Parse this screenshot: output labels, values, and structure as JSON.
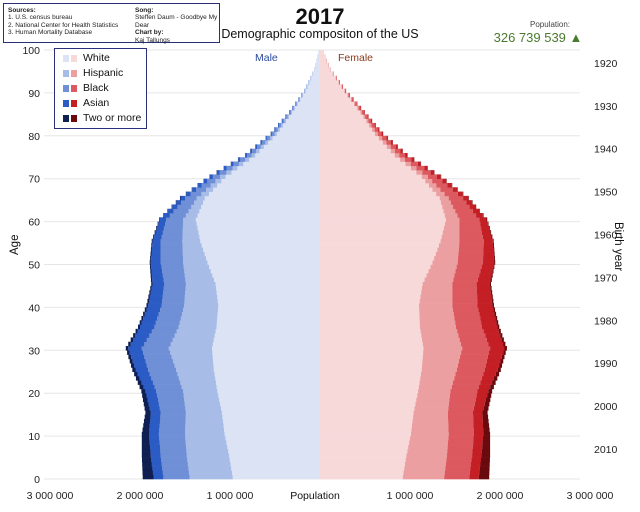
{
  "header": {
    "title": "2017",
    "subtitle": "Demographic compositon of the US",
    "population_label": "Population:",
    "population_value": "326 739 539 ▲",
    "population_color": "#4a7a2f"
  },
  "sources": {
    "heading": "Sources:",
    "items": [
      "1. U.S. census bureau",
      "2. National Center for Health Statistics",
      "3. Human Mortality Database"
    ],
    "song_heading": "Song:",
    "song": "Steffen Daum - Goodbye My Dear",
    "chartby_heading": "Chart by:",
    "chartby": "Kaj Tallungs"
  },
  "chart_data": {
    "type": "bar",
    "orientation": "horizontal-population-pyramid",
    "stacked": true,
    "title": "2017",
    "subtitle": "Demographic compositon of the US",
    "xlabel": "Population",
    "ylabel": "Age",
    "y2label": "Birth year",
    "side_labels": {
      "male": "Male",
      "female": "Female"
    },
    "xlim": [
      -3000000,
      3000000
    ],
    "ylim": [
      0,
      100
    ],
    "x_ticks": [
      {
        "value": -3000000,
        "label": "3 000 000"
      },
      {
        "value": -2000000,
        "label": "2 000 000"
      },
      {
        "value": -1000000,
        "label": "1 000 000"
      },
      {
        "value": 1000000,
        "label": "1 000 000"
      },
      {
        "value": 2000000,
        "label": "2 000 000"
      },
      {
        "value": 3000000,
        "label": "3 000 000"
      }
    ],
    "y_ticks": [
      0,
      10,
      20,
      30,
      40,
      50,
      60,
      70,
      80,
      90,
      100
    ],
    "birth_year_ticks": [
      {
        "age": 7,
        "label": "2010"
      },
      {
        "age": 17,
        "label": "2000"
      },
      {
        "age": 27,
        "label": "1990"
      },
      {
        "age": 37,
        "label": "1980"
      },
      {
        "age": 47,
        "label": "1970"
      },
      {
        "age": 57,
        "label": "1960"
      },
      {
        "age": 67,
        "label": "1950"
      },
      {
        "age": 77,
        "label": "1940"
      },
      {
        "age": 87,
        "label": "1930"
      },
      {
        "age": 97,
        "label": "1920"
      }
    ],
    "grid": "horizontal-every-10",
    "legend_position": "top-left",
    "categories": [
      "0",
      "5",
      "10",
      "15",
      "20",
      "25",
      "30",
      "35",
      "40",
      "45",
      "50",
      "55",
      "60",
      "65",
      "70",
      "75",
      "80",
      "85",
      "90",
      "95",
      "100"
    ],
    "series": [
      {
        "name": "White",
        "colors": {
          "male": "#dce3f4",
          "female": "#f7d9da"
        },
        "male": [
          970000,
          1010000,
          1060000,
          1090000,
          1140000,
          1180000,
          1200000,
          1150000,
          1130000,
          1160000,
          1250000,
          1330000,
          1380000,
          1280000,
          1050000,
          720000,
          480000,
          310000,
          160000,
          55000,
          8000
        ],
        "female": [
          920000,
          960000,
          1010000,
          1040000,
          1090000,
          1130000,
          1150000,
          1110000,
          1100000,
          1140000,
          1250000,
          1340000,
          1400000,
          1330000,
          1130000,
          830000,
          610000,
          450000,
          270000,
          110000,
          20000
        ]
      },
      {
        "name": "Hispanic",
        "colors": {
          "male": "#a7bce6",
          "female": "#ec9fa1"
        },
        "male": [
          480000,
          470000,
          440000,
          400000,
          380000,
          420000,
          480000,
          420000,
          380000,
          330000,
          270000,
          200000,
          140000,
          90000,
          60000,
          40000,
          25000,
          12000,
          5000,
          1500,
          300
        ],
        "female": [
          460000,
          450000,
          420000,
          380000,
          360000,
          390000,
          430000,
          400000,
          370000,
          330000,
          280000,
          210000,
          150000,
          100000,
          70000,
          50000,
          32000,
          16000,
          7000,
          2000,
          400
        ]
      },
      {
        "name": "Black",
        "colors": {
          "male": "#6f8fd6",
          "female": "#dc5a5f"
        },
        "male": [
          290000,
          290000,
          290000,
          280000,
          300000,
          310000,
          300000,
          270000,
          250000,
          240000,
          250000,
          240000,
          190000,
          130000,
          80000,
          50000,
          30000,
          15000,
          6000,
          2000,
          300
        ],
        "female": [
          280000,
          280000,
          280000,
          280000,
          300000,
          310000,
          310000,
          290000,
          280000,
          270000,
          280000,
          270000,
          220000,
          160000,
          100000,
          65000,
          42000,
          24000,
          10000,
          3000,
          500
        ]
      },
      {
        "name": "Asian",
        "colors": {
          "male": "#2b5bc4",
          "female": "#c41f24"
        },
        "male": [
          110000,
          110000,
          110000,
          110000,
          120000,
          140000,
          150000,
          160000,
          150000,
          130000,
          110000,
          90000,
          70000,
          50000,
          35000,
          20000,
          12000,
          6000,
          2500,
          800,
          100
        ],
        "female": [
          105000,
          105000,
          105000,
          105000,
          120000,
          145000,
          160000,
          170000,
          165000,
          145000,
          125000,
          100000,
          80000,
          58000,
          42000,
          26000,
          16000,
          8000,
          3500,
          1000,
          150
        ]
      },
      {
        "name": "Two or more",
        "colors": {
          "male": "#0f1f52",
          "female": "#6b0a0e"
        },
        "male": [
          120000,
          100000,
          80000,
          60000,
          45000,
          35000,
          28000,
          22000,
          18000,
          15000,
          12000,
          10000,
          8000,
          6000,
          4000,
          2500,
          1500,
          800,
          300,
          100,
          0
        ],
        "female": [
          115000,
          95000,
          75000,
          57000,
          43000,
          34000,
          27000,
          22000,
          18000,
          15000,
          12000,
          10000,
          8000,
          6000,
          4500,
          3000,
          1800,
          1000,
          400,
          120,
          0
        ]
      }
    ]
  }
}
